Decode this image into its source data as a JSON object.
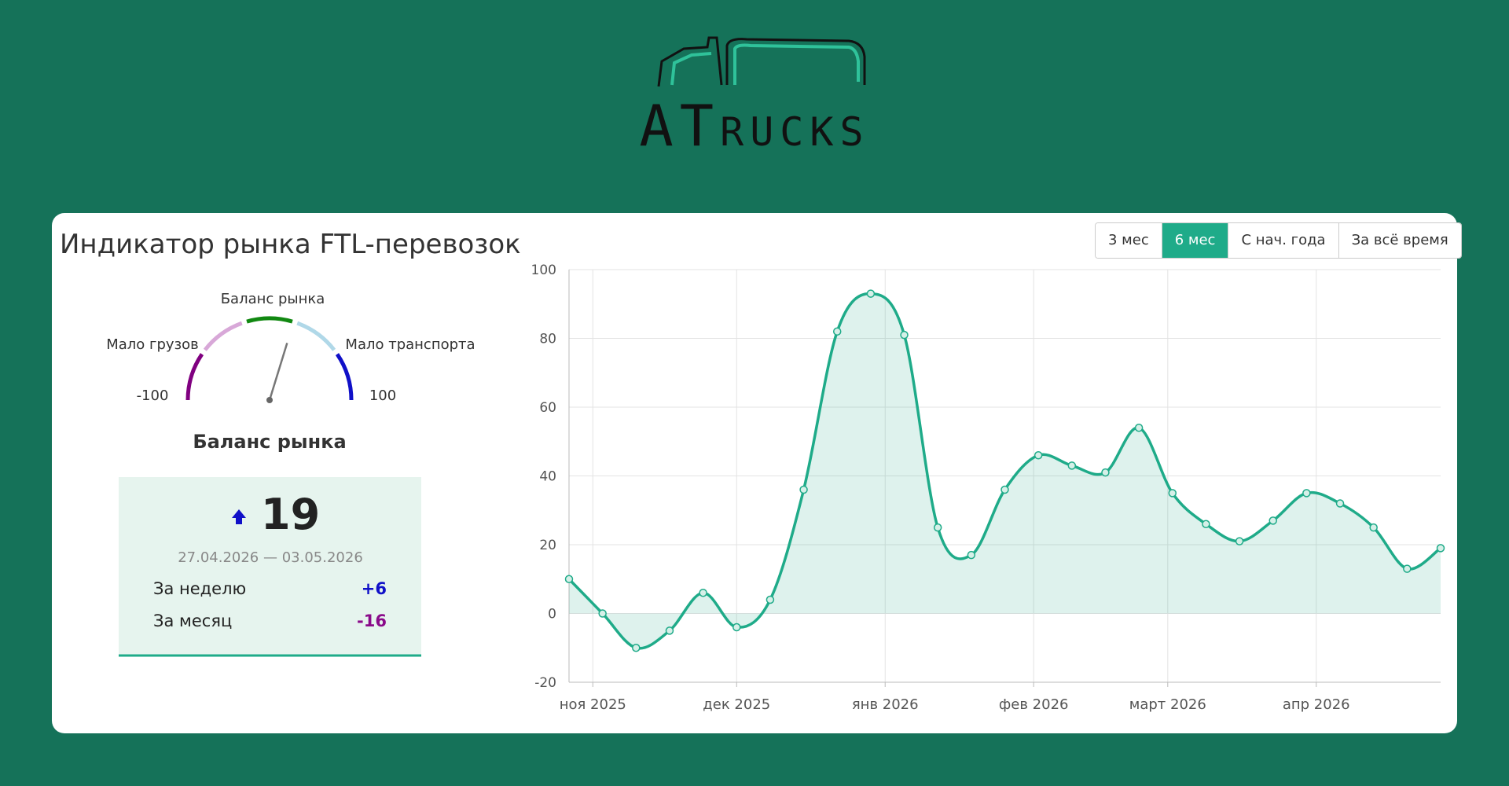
{
  "logo": "ATrucks",
  "widget": {
    "title": "Индикатор рынка FTL-перевозок",
    "periods": [
      "3 мес",
      "6 мес",
      "С нач. года",
      "За всё время"
    ],
    "active_period": 1
  },
  "gauge": {
    "center_label": "Баланс рынка",
    "left_label": "Мало грузов",
    "right_label": "Мало транспорта",
    "min": -100,
    "max": 100,
    "title": "Баланс рынка"
  },
  "summary": {
    "value": 19,
    "period": "27.04.2026 — 03.05.2026",
    "rows": [
      {
        "label": "За неделю",
        "value": 6,
        "value_label": "+6",
        "color": "#1010c8"
      },
      {
        "label": "За месяц",
        "value": -16,
        "value_label": "-16",
        "color": "#8a0a8a"
      }
    ]
  },
  "chart_data": {
    "type": "area",
    "x": [
      0,
      1,
      2,
      3,
      4,
      5,
      6,
      7,
      8,
      9,
      10,
      11,
      12,
      13,
      14,
      15,
      16,
      17,
      18,
      19,
      20,
      21,
      22,
      23,
      24,
      25,
      26
    ],
    "values": [
      10,
      0,
      -10,
      -5,
      6,
      -4,
      4,
      36,
      82,
      93,
      81,
      25,
      17,
      36,
      46,
      43,
      41,
      54,
      35,
      26,
      21,
      27,
      35,
      32,
      25,
      13,
      19
    ],
    "color": "#1fab89",
    "xlim": [
      0,
      26
    ],
    "xticks": [
      {
        "value": 0.71,
        "label": "ноя 2025"
      },
      {
        "value": 5,
        "label": "дек 2025"
      },
      {
        "value": 9.43,
        "label": "янв 2026"
      },
      {
        "value": 13.86,
        "label": "фев 2026"
      },
      {
        "value": 17.86,
        "label": "март 2026"
      },
      {
        "value": 22.29,
        "label": "апр 2026"
      }
    ],
    "ylim": [
      -20,
      100
    ],
    "yticks": [
      -20,
      0,
      20,
      40,
      60,
      80,
      100
    ],
    "grid": true
  }
}
